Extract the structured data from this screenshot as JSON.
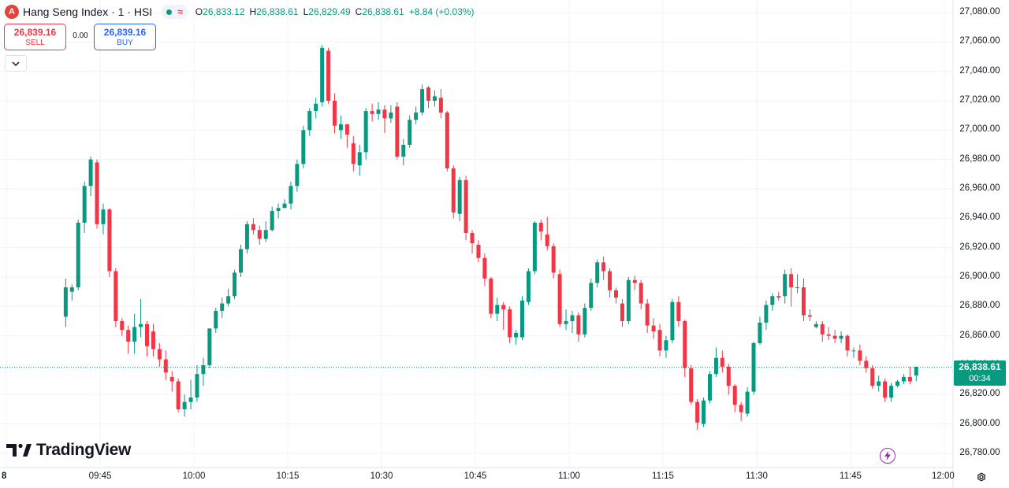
{
  "legend": {
    "logo_letter": "A",
    "title": "Hang Seng Index · 1 · HSI",
    "approx_symbol": "≈",
    "open_key": "O",
    "open": "26,833.12",
    "high_key": "H",
    "high": "26,838.61",
    "low_key": "L",
    "low": "26,829.49",
    "close_key": "C",
    "close": "26,838.61",
    "change": "+8.84 (+0.03%)"
  },
  "trade": {
    "sell_price": "26,839.16",
    "sell_label": "SELL",
    "spread": "0.00",
    "buy_price": "26,839.16",
    "buy_label": "BUY"
  },
  "last_price": {
    "value": "26,838.61",
    "countdown": "00:34"
  },
  "branding": {
    "name": "TradingView"
  },
  "colors": {
    "up": "#089981",
    "down": "#f23645",
    "accent": "#2962ff",
    "grid": "#f0f3fa"
  },
  "icons": {
    "collapse": "chevron-down-icon",
    "bolt": "lightning-icon",
    "settings": "gear-icon"
  },
  "chart_data": {
    "type": "candlestick",
    "symbol": "HSI",
    "interval": "1",
    "y_range": [
      26770,
      27085
    ],
    "y_ticks": [
      "27,080.00",
      "27,060.00",
      "27,040.00",
      "27,020.00",
      "27,000.00",
      "26,980.00",
      "26,960.00",
      "26,940.00",
      "26,920.00",
      "26,900.00",
      "26,880.00",
      "26,860.00",
      "26,840.00",
      "26,820.00",
      "26,800.00",
      "26,780.00"
    ],
    "y_tick_values": [
      27080,
      27060,
      27040,
      27020,
      27000,
      26980,
      26960,
      26940,
      26920,
      26900,
      26880,
      26860,
      26840,
      26820,
      26800,
      26780
    ],
    "x_range_minutes": [
      9.5,
      120.5
    ],
    "x_ticks": [
      {
        "label": "8",
        "minute": 0
      },
      {
        "label": "09:45",
        "minute": 15
      },
      {
        "label": "10:00",
        "minute": 30
      },
      {
        "label": "10:15",
        "minute": 45
      },
      {
        "label": "10:30",
        "minute": 60
      },
      {
        "label": "10:45",
        "minute": 75
      },
      {
        "label": "11:00",
        "minute": 90
      },
      {
        "label": "11:15",
        "minute": 105
      },
      {
        "label": "11:30",
        "minute": 120
      },
      {
        "label": "11:45",
        "minute": 135
      },
      {
        "label": "12:00",
        "minute": 150
      }
    ],
    "last_price": 26838.61,
    "candles": [
      [
        26873,
        26893,
        26869,
        26899,
        26866
      ],
      [
        26890,
        26893,
        26886,
        26895,
        26884
      ],
      [
        26893,
        26937,
        26893,
        26939,
        26891
      ],
      [
        26937,
        26962,
        26934,
        26965,
        26930
      ],
      [
        26962,
        26980,
        26958,
        26982,
        26955
      ],
      [
        26978,
        26936,
        26936,
        26980,
        26933
      ],
      [
        26936,
        26946,
        26934,
        26950,
        26929
      ],
      [
        26946,
        26904,
        26904,
        26947,
        26900
      ],
      [
        26904,
        26870,
        26870,
        26906,
        26866
      ],
      [
        26870,
        26864,
        26862,
        26872,
        26860
      ],
      [
        26864,
        26856,
        26856,
        26867,
        26848
      ],
      [
        26856,
        26866,
        26854,
        26875,
        26848
      ],
      [
        26866,
        26868,
        26863,
        26885,
        26859
      ],
      [
        26868,
        26853,
        26853,
        26870,
        26846
      ],
      [
        26863,
        26851,
        26851,
        26868,
        26846
      ],
      [
        26851,
        26844,
        26842,
        26855,
        26839
      ],
      [
        26844,
        26835,
        26832,
        26850,
        26830
      ],
      [
        26832,
        26829,
        26826,
        26836,
        26822
      ],
      [
        26829,
        26810,
        26808,
        26831,
        26808
      ],
      [
        26810,
        26815,
        26808,
        26820,
        26805
      ],
      [
        26815,
        26818,
        26813,
        26830,
        26810
      ],
      [
        26818,
        26834,
        26815,
        26840,
        26815
      ],
      [
        26834,
        26840,
        26833,
        26845,
        26826
      ],
      [
        26840,
        26865,
        26838,
        26865,
        26838
      ],
      [
        26865,
        26877,
        26862,
        26879,
        26862
      ],
      [
        26877,
        26882,
        26874,
        26886,
        26872
      ],
      [
        26882,
        26887,
        26882,
        26892,
        26880
      ],
      [
        26887,
        26903,
        26885,
        26905,
        26885
      ],
      [
        26903,
        26919,
        26900,
        26922,
        26900
      ],
      [
        26919,
        26936,
        26917,
        26938,
        26916
      ],
      [
        26936,
        26932,
        26930,
        26940,
        26929
      ],
      [
        26932,
        26926,
        26926,
        26935,
        26922
      ],
      [
        26926,
        26932,
        26924,
        26938,
        26924
      ],
      [
        26932,
        26945,
        26931,
        26948,
        26931
      ],
      [
        26945,
        26947,
        26942,
        26950,
        26940
      ],
      [
        26947,
        26950,
        26947,
        26953,
        26947
      ],
      [
        26950,
        26962,
        26949,
        26965,
        26946
      ],
      [
        26962,
        26977,
        26960,
        26980,
        26958
      ],
      [
        26977,
        27000,
        26976,
        27003,
        26974
      ],
      [
        27000,
        27013,
        26996,
        27015,
        26996
      ],
      [
        27013,
        27018,
        27012,
        27022,
        27008
      ],
      [
        27019,
        27056,
        27018,
        27058,
        27016
      ],
      [
        27054,
        27020,
        27021,
        27056,
        27018
      ],
      [
        27020,
        27003,
        27000,
        27025,
        26998
      ],
      [
        27000,
        27004,
        26997,
        27010,
        26994
      ],
      [
        27004,
        26997,
        26991,
        27004,
        26988
      ],
      [
        26991,
        26977,
        26976,
        26996,
        26972
      ],
      [
        26976,
        26985,
        26975,
        26990,
        26969
      ],
      [
        26985,
        27013,
        26982,
        27015,
        26980
      ],
      [
        27013,
        27011,
        27009,
        27018,
        27006
      ],
      [
        27011,
        27014,
        27010,
        27019,
        27007
      ],
      [
        27014,
        27008,
        27001,
        27017,
        26998
      ],
      [
        27008,
        27012,
        27007,
        27017,
        27005
      ],
      [
        27016,
        26982,
        26980,
        27019,
        26980
      ],
      [
        26982,
        26990,
        26980,
        26994,
        26976
      ],
      [
        26990,
        27007,
        26988,
        27010,
        26988
      ],
      [
        27007,
        27012,
        27005,
        27016,
        27004
      ],
      [
        27012,
        27028,
        27011,
        27031,
        27010
      ],
      [
        27029,
        27020,
        27018,
        27030,
        27015
      ],
      [
        27020,
        27023,
        27019,
        27027,
        27016
      ],
      [
        27022,
        27012,
        27010,
        27028,
        27008
      ],
      [
        27012,
        26974,
        26972,
        27013,
        26972
      ],
      [
        26974,
        26944,
        26942,
        26976,
        26940
      ],
      [
        26943,
        26966,
        26940,
        26968,
        26938
      ],
      [
        26966,
        26930,
        26928,
        26969,
        26925
      ],
      [
        26930,
        26923,
        26920,
        26932,
        26916
      ],
      [
        26922,
        26913,
        26910,
        26925,
        26910
      ],
      [
        26913,
        26899,
        26896,
        26916,
        26894
      ],
      [
        26899,
        26875,
        26873,
        26900,
        26872
      ],
      [
        26875,
        26881,
        26874,
        26886,
        26870
      ],
      [
        26881,
        26878,
        26874,
        26883,
        26864
      ],
      [
        26878,
        26859,
        26856,
        26880,
        26855
      ],
      [
        26859,
        26862,
        26856,
        26864,
        26854
      ],
      [
        26859,
        26884,
        26857,
        26887,
        26857
      ],
      [
        26883,
        26904,
        26881,
        26906,
        26881
      ],
      [
        26904,
        26937,
        26902,
        26938,
        26902
      ],
      [
        26937,
        26931,
        26929,
        26939,
        26925
      ],
      [
        26929,
        26921,
        26921,
        26941,
        26918
      ],
      [
        26921,
        26903,
        26901,
        26923,
        26899
      ],
      [
        26902,
        26868,
        26866,
        26905,
        26866
      ],
      [
        26868,
        26870,
        26866,
        26878,
        26864
      ],
      [
        26870,
        26874,
        26868,
        26877,
        26862
      ],
      [
        26874,
        26861,
        26858,
        26876,
        26856
      ],
      [
        26861,
        26879,
        26859,
        26882,
        26859
      ],
      [
        26879,
        26896,
        26877,
        26899,
        26877
      ],
      [
        26896,
        26910,
        26893,
        26912,
        26893
      ],
      [
        26910,
        26904,
        26902,
        26914,
        26898
      ],
      [
        26904,
        26891,
        26889,
        26906,
        26886
      ],
      [
        26891,
        26886,
        26886,
        26893,
        26882
      ],
      [
        26882,
        26870,
        26868,
        26885,
        26866
      ],
      [
        26870,
        26898,
        26868,
        26900,
        26868
      ],
      [
        26898,
        26896,
        26895,
        26901,
        26891
      ],
      [
        26896,
        26882,
        26880,
        26898,
        26878
      ],
      [
        26882,
        26867,
        26865,
        26885,
        26862
      ],
      [
        26867,
        26863,
        26860,
        26872,
        26858
      ],
      [
        26864,
        26850,
        26850,
        26868,
        26846
      ],
      [
        26850,
        26857,
        26848,
        26860,
        26845
      ],
      [
        26857,
        26883,
        26855,
        26885,
        26855
      ],
      [
        26883,
        26870,
        26868,
        26887,
        26866
      ],
      [
        26870,
        26838,
        26835,
        26871,
        26832
      ],
      [
        26838,
        26815,
        26815,
        26840,
        26813
      ],
      [
        26815,
        26801,
        26798,
        26817,
        26796
      ],
      [
        26800,
        26816,
        26798,
        26818,
        26798
      ],
      [
        26816,
        26834,
        26814,
        26836,
        26814
      ],
      [
        26834,
        26845,
        26832,
        26852,
        26832
      ],
      [
        26845,
        26839,
        26836,
        26850,
        26835
      ],
      [
        26839,
        26826,
        26823,
        26841,
        26820
      ],
      [
        26826,
        26813,
        26810,
        26827,
        26808
      ],
      [
        26813,
        26808,
        26805,
        26815,
        26802
      ],
      [
        26807,
        26822,
        26805,
        26825,
        26805
      ],
      [
        26822,
        26855,
        26820,
        26856,
        26820
      ],
      [
        26855,
        26869,
        26854,
        26873,
        26857
      ],
      [
        26869,
        26881,
        26869,
        26884,
        26864
      ],
      [
        26881,
        26887,
        26879,
        26889,
        26877
      ],
      [
        26887,
        26886,
        26885,
        26890,
        26884
      ],
      [
        26887,
        26902,
        26882,
        26905,
        26882
      ],
      [
        26902,
        26893,
        26887,
        26906,
        26880
      ],
      [
        26893,
        26893,
        26890,
        26902,
        26889
      ],
      [
        26893,
        26874,
        26874,
        26899,
        26870
      ],
      [
        26874,
        26873,
        26870,
        26878,
        26871
      ],
      [
        26866,
        26868,
        26865,
        26870,
        26865
      ],
      [
        26868,
        26861,
        26858,
        26870,
        26856
      ],
      [
        26861,
        26860,
        26857,
        26866,
        26857
      ],
      [
        26860,
        26858,
        26855,
        26864,
        26855
      ],
      [
        26858,
        26860,
        26855,
        26863,
        26855
      ],
      [
        26860,
        26850,
        26846,
        26861,
        26846
      ],
      [
        26850,
        26850,
        26847,
        26852,
        26845
      ],
      [
        26850,
        26843,
        26840,
        26854,
        26840
      ],
      [
        26843,
        26838,
        26836,
        26846,
        26835
      ],
      [
        26838,
        26826,
        26826,
        26840,
        26824
      ],
      [
        26826,
        26829,
        26822,
        26833,
        26822
      ],
      [
        26829,
        26818,
        26816,
        26831,
        26815
      ],
      [
        26818,
        26826,
        26815,
        26828,
        26815
      ],
      [
        26826,
        26829,
        26825,
        26830,
        26825
      ],
      [
        26829,
        26832,
        26827,
        26834,
        26829
      ],
      [
        26832,
        26829,
        26827,
        26839,
        26829
      ],
      [
        26833,
        26839,
        26829,
        26838,
        26829
      ]
    ]
  }
}
